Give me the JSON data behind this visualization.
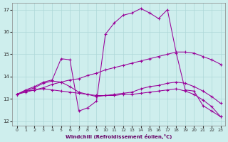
{
  "xlabel": "Windchill (Refroidissement éolien,°C)",
  "bg_color": "#ceeeed",
  "grid_color": "#aed8d8",
  "line_color": "#990099",
  "ylim": [
    11.8,
    17.3
  ],
  "xlim": [
    -0.5,
    23.5
  ],
  "yticks": [
    12,
    13,
    14,
    15,
    16,
    17
  ],
  "xticks": [
    0,
    1,
    2,
    3,
    4,
    5,
    6,
    7,
    8,
    9,
    10,
    11,
    12,
    13,
    14,
    15,
    16,
    17,
    18,
    19,
    20,
    21,
    22,
    23
  ],
  "curve_main_x": [
    0,
    1,
    2,
    3,
    4,
    5,
    6,
    7,
    8,
    9,
    10,
    11,
    12,
    13,
    14,
    15,
    16,
    17,
    18,
    19,
    20,
    21,
    22,
    23
  ],
  "curve_main_y": [
    13.2,
    13.4,
    13.55,
    13.75,
    13.85,
    14.8,
    14.75,
    12.45,
    12.6,
    12.9,
    15.9,
    16.4,
    16.75,
    16.85,
    17.05,
    16.85,
    16.6,
    17.0,
    15.05,
    13.4,
    13.35,
    12.7,
    12.45,
    12.2
  ],
  "curve_rise_x": [
    0,
    1,
    2,
    3,
    4,
    5,
    6,
    7,
    8,
    9,
    10,
    11,
    12,
    13,
    14,
    15,
    16,
    17,
    18,
    19,
    20,
    21,
    22,
    23
  ],
  "curve_rise_y": [
    13.2,
    13.3,
    13.4,
    13.5,
    13.65,
    13.75,
    13.85,
    13.9,
    14.05,
    14.15,
    14.3,
    14.4,
    14.5,
    14.6,
    14.7,
    14.8,
    14.9,
    15.0,
    15.1,
    15.1,
    15.05,
    14.9,
    14.75,
    14.55
  ],
  "curve_flat_x": [
    0,
    1,
    2,
    3,
    4,
    5,
    6,
    7,
    8,
    9,
    10,
    11,
    12,
    13,
    14,
    15,
    16,
    17,
    18,
    19,
    20,
    21,
    22,
    23
  ],
  "curve_flat_y": [
    13.2,
    13.35,
    13.4,
    13.45,
    13.4,
    13.35,
    13.3,
    13.25,
    13.2,
    13.15,
    13.15,
    13.15,
    13.2,
    13.2,
    13.25,
    13.3,
    13.35,
    13.4,
    13.45,
    13.35,
    13.2,
    12.95,
    12.65,
    12.2
  ],
  "curve_mid_x": [
    0,
    1,
    2,
    3,
    4,
    5,
    6,
    7,
    8,
    9,
    10,
    11,
    12,
    13,
    14,
    15,
    16,
    17,
    18,
    19,
    20,
    21,
    22,
    23
  ],
  "curve_mid_y": [
    13.2,
    13.35,
    13.5,
    13.7,
    13.8,
    13.75,
    13.55,
    13.3,
    13.2,
    13.1,
    13.15,
    13.2,
    13.25,
    13.3,
    13.45,
    13.55,
    13.6,
    13.7,
    13.75,
    13.7,
    13.55,
    13.35,
    13.1,
    12.8
  ]
}
